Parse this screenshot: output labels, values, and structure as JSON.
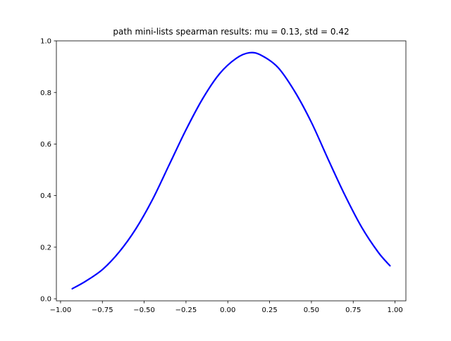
{
  "chart_data": {
    "type": "line",
    "title": "path mini-lists spearman results: mu = 0.13,  std = 0.42",
    "xlabel": "",
    "ylabel": "",
    "xlim": [
      -1.0,
      1.0
    ],
    "ylim": [
      0.0,
      1.0
    ],
    "x_ticks": [
      -1.0,
      -0.75,
      -0.5,
      -0.25,
      0.0,
      0.25,
      0.5,
      0.75,
      1.0
    ],
    "x_tick_labels": [
      "−1.00",
      "−0.75",
      "−0.50",
      "−0.25",
      "0.00",
      "0.25",
      "0.50",
      "0.75",
      "1.00"
    ],
    "y_ticks": [
      0.0,
      0.2,
      0.4,
      0.6,
      0.8,
      1.0
    ],
    "y_tick_labels": [
      "0.0",
      "0.2",
      "0.4",
      "0.6",
      "0.8",
      "1.0"
    ],
    "grid": false,
    "line_color": "#0000ff",
    "series": [
      {
        "x": [
          -0.93,
          -0.85,
          -0.75,
          -0.65,
          -0.55,
          -0.45,
          -0.35,
          -0.25,
          -0.15,
          -0.05,
          0.05,
          0.13,
          0.2,
          0.3,
          0.4,
          0.5,
          0.6,
          0.7,
          0.8,
          0.9,
          0.97
        ],
        "values": [
          0.039,
          0.068,
          0.113,
          0.181,
          0.271,
          0.385,
          0.52,
          0.655,
          0.776,
          0.872,
          0.932,
          0.954,
          0.944,
          0.897,
          0.804,
          0.684,
          0.541,
          0.402,
          0.278,
          0.18,
          0.128
        ]
      }
    ]
  }
}
